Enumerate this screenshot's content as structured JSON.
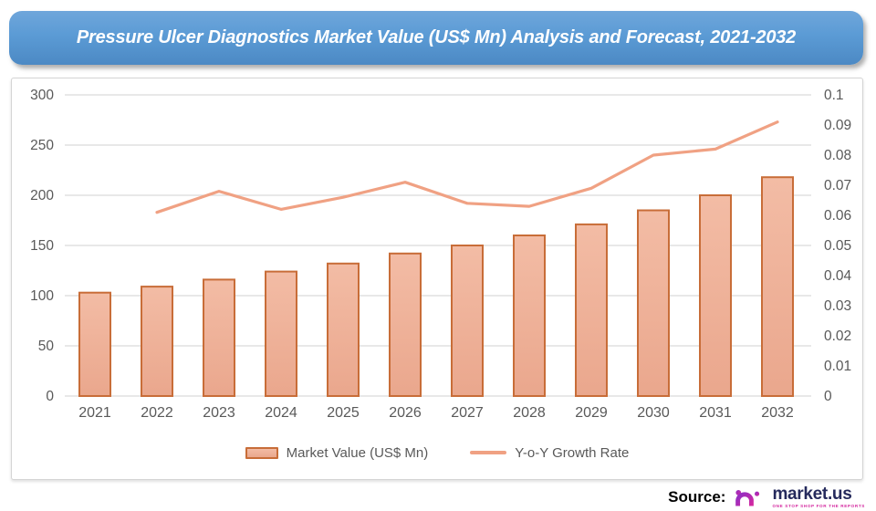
{
  "title": {
    "text": "Pressure Ulcer Diagnostics Market Value (US$ Mn) Analysis and Forecast, 2021-2032"
  },
  "chart_data": {
    "type": "bar",
    "title": "Pressure Ulcer Diagnostics Market Value (US$ Mn) Analysis and Forecast, 2021-2032",
    "xlabel": "",
    "ylabel": "",
    "categories": [
      "2021",
      "2022",
      "2023",
      "2024",
      "2025",
      "2026",
      "2027",
      "2028",
      "2029",
      "2030",
      "2031",
      "2032"
    ],
    "series": [
      {
        "name": "Market Value (US$ Mn)",
        "type": "bar",
        "axis": "left",
        "values": [
          103,
          109,
          116,
          124,
          132,
          142,
          150,
          160,
          171,
          185,
          200,
          218
        ]
      },
      {
        "name": "Y-o-Y Growth Rate",
        "type": "line",
        "axis": "right",
        "values": [
          null,
          0.061,
          0.068,
          0.062,
          0.066,
          0.071,
          0.064,
          0.063,
          0.069,
          0.08,
          0.082,
          0.091
        ]
      }
    ],
    "left_axis": {
      "min": 0,
      "max": 300,
      "step": 50,
      "ticks": [
        "300",
        "250",
        "200",
        "150",
        "100",
        "50",
        "0"
      ]
    },
    "right_axis": {
      "min": 0,
      "max": 0.1,
      "step": 0.01,
      "ticks": [
        "0.1",
        "0.09",
        "0.08",
        "0.07",
        "0.06",
        "0.05",
        "0.04",
        "0.03",
        "0.02",
        "0.01",
        "0"
      ]
    },
    "grid": true,
    "legend_position": "bottom"
  },
  "legend": {
    "items": [
      {
        "label": "Market Value (US$ Mn)",
        "swatch": "bar"
      },
      {
        "label": "Y-o-Y Growth Rate",
        "swatch": "line"
      }
    ]
  },
  "source": {
    "label": "Source:",
    "brand": "market.us",
    "tagline": "ONE STOP SHOP FOR THE REPORTS"
  },
  "colors": {
    "banner_top": "#6FA6DB",
    "banner_mid": "#5B9BD5",
    "banner_bottom": "#4C89C4",
    "bar_fill_top": "#F3BCA5",
    "bar_fill_bottom": "#EAA78D",
    "bar_border": "#C86D38",
    "line": "#F0A183",
    "grid": "#D9D9D9",
    "axis_text": "#595959",
    "brand_navy": "#252A5C",
    "brand_purple": "#8F2FC5",
    "brand_magenta": "#D4289F"
  }
}
